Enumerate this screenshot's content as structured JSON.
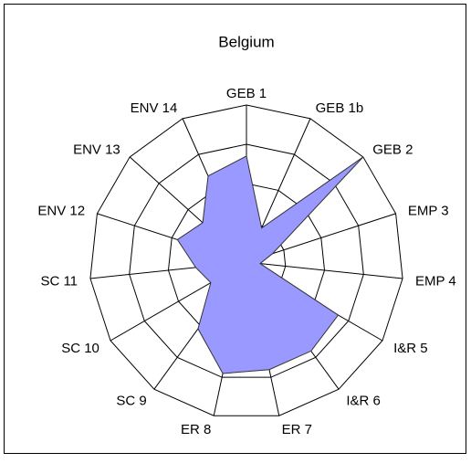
{
  "chart_data": {
    "type": "radar",
    "title": "Belgium",
    "categories": [
      "GEB 1",
      "GEB 1b",
      "GEB 2",
      "EMP 3",
      "EMP 4",
      "I&R 5",
      "I&R 6",
      "ER 7",
      "ER 8",
      "SC 9",
      "SC 10",
      "SC 11",
      "ENV 12",
      "ENV 13",
      "ENV 14"
    ],
    "values": [
      2.7,
      0.95,
      4,
      0.7,
      0.35,
      2.7,
      2.8,
      2.8,
      2.9,
      2.1,
      1.05,
      1.3,
      1.85,
      1.5,
      2.4
    ],
    "color": "#9999ff",
    "rlim": [
      0,
      4
    ],
    "rticks": [
      1,
      2,
      3,
      4
    ]
  }
}
